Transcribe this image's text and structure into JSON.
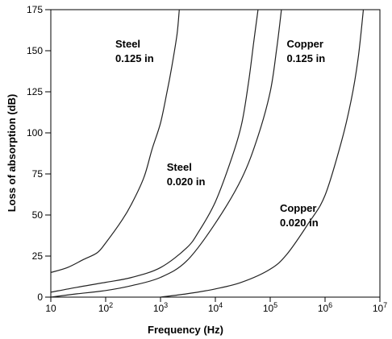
{
  "chart_data": {
    "type": "line",
    "title": "",
    "xlabel": "Frequency (Hz)",
    "ylabel": "Loss of absorption (dB)",
    "x_scale": "log",
    "xlim": [
      10,
      10000000
    ],
    "ylim": [
      0,
      175
    ],
    "grid": false,
    "x_ticks": [
      {
        "value": 10,
        "base": "10",
        "exp": ""
      },
      {
        "value": 100,
        "base": "10",
        "exp": "2"
      },
      {
        "value": 1000,
        "base": "10",
        "exp": "3"
      },
      {
        "value": 10000,
        "base": "10",
        "exp": "4"
      },
      {
        "value": 100000,
        "base": "10",
        "exp": "5"
      },
      {
        "value": 1000000,
        "base": "10",
        "exp": "6"
      },
      {
        "value": 10000000,
        "base": "10",
        "exp": "7"
      }
    ],
    "y_ticks": [
      {
        "value": 0,
        "label": "0"
      },
      {
        "value": 25,
        "label": "25"
      },
      {
        "value": 50,
        "label": "50"
      },
      {
        "value": 75,
        "label": "75"
      },
      {
        "value": 100,
        "label": "100"
      },
      {
        "value": 125,
        "label": "125"
      },
      {
        "value": 150,
        "label": "150"
      },
      {
        "value": 175,
        "label": "175"
      }
    ],
    "series": [
      {
        "name": "Steel 0.125 in",
        "points": [
          [
            10,
            15
          ],
          [
            20,
            18
          ],
          [
            40,
            23
          ],
          [
            70,
            27
          ],
          [
            100,
            33
          ],
          [
            200,
            47
          ],
          [
            300,
            57
          ],
          [
            500,
            73
          ],
          [
            700,
            90
          ],
          [
            1000,
            106
          ],
          [
            1300,
            124
          ],
          [
            1600,
            140
          ],
          [
            2000,
            160
          ],
          [
            2200,
            175
          ]
        ]
      },
      {
        "name": "Steel 0.020 in",
        "points": [
          [
            10,
            3
          ],
          [
            30,
            6
          ],
          [
            100,
            9
          ],
          [
            300,
            12
          ],
          [
            1000,
            18
          ],
          [
            3000,
            30
          ],
          [
            5000,
            40
          ],
          [
            10000,
            58
          ],
          [
            20000,
            85
          ],
          [
            30000,
            105
          ],
          [
            40000,
            130
          ],
          [
            50000,
            155
          ],
          [
            60000,
            175
          ]
        ]
      },
      {
        "name": "Copper 0.125 in",
        "points": [
          [
            10,
            0
          ],
          [
            30,
            2
          ],
          [
            100,
            4
          ],
          [
            300,
            7
          ],
          [
            1000,
            12
          ],
          [
            3000,
            22
          ],
          [
            10000,
            45
          ],
          [
            30000,
            72
          ],
          [
            60000,
            98
          ],
          [
            100000,
            125
          ],
          [
            130000,
            150
          ],
          [
            160000,
            175
          ]
        ]
      },
      {
        "name": "Copper 0.020 in",
        "points": [
          [
            1000,
            0
          ],
          [
            3000,
            2
          ],
          [
            10000,
            5
          ],
          [
            30000,
            9
          ],
          [
            100000,
            17
          ],
          [
            200000,
            26
          ],
          [
            500000,
            45
          ],
          [
            1000000,
            62
          ],
          [
            2000000,
            95
          ],
          [
            3000000,
            120
          ],
          [
            4000000,
            145
          ],
          [
            5000000,
            175
          ]
        ]
      }
    ],
    "annotations": [
      {
        "id": "steel-0125",
        "lines": [
          "Steel",
          "0.125 in"
        ],
        "x": 150,
        "y": 150
      },
      {
        "id": "steel-0020",
        "lines": [
          "Steel",
          "0.020 in"
        ],
        "x": 1300,
        "y": 75
      },
      {
        "id": "copper-0125",
        "lines": [
          "Copper",
          "0.125 in"
        ],
        "x": 200000,
        "y": 150
      },
      {
        "id": "copper-0020",
        "lines": [
          "Copper",
          "0.020 in"
        ],
        "x": 150000,
        "y": 50
      }
    ]
  }
}
